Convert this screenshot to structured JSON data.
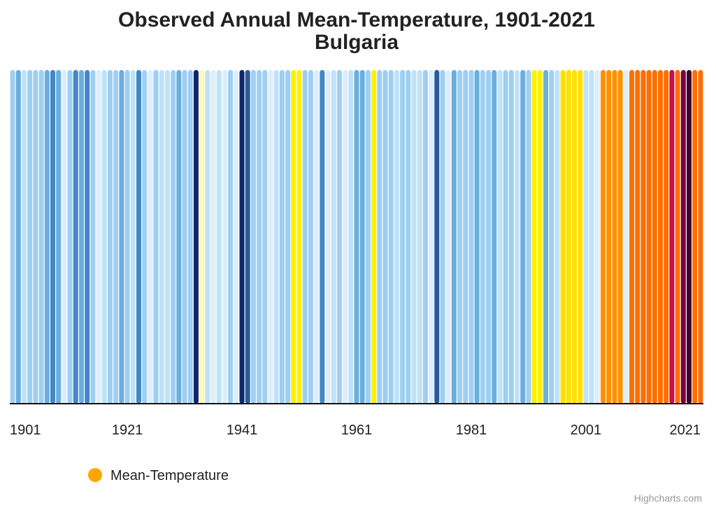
{
  "chart_data": {
    "type": "bar",
    "title": "Observed Annual Mean-Temperature, 1901-2021",
    "subtitle": "Bulgaria",
    "x_start": 1901,
    "x_end": 2021,
    "x_ticks": [
      "1901",
      "1921",
      "1941",
      "1961",
      "1981",
      "2001",
      "2021"
    ],
    "series": [
      {
        "name": "Mean-Temperature",
        "legend_color": "#FFA500",
        "color_codes": [
          2,
          3,
          1,
          2,
          2,
          2,
          3,
          4,
          3,
          0,
          2,
          4,
          3,
          4,
          2,
          0,
          1,
          2,
          2,
          3,
          2,
          1,
          4,
          2,
          0,
          2,
          1,
          1,
          2,
          3,
          2,
          2,
          7,
          8,
          1,
          0,
          1,
          0,
          2,
          0,
          7,
          6,
          2,
          2,
          2,
          0,
          1,
          2,
          2,
          9,
          9,
          2,
          2,
          0,
          4,
          0,
          1,
          2,
          0,
          1,
          3,
          3,
          2,
          9,
          2,
          2,
          2,
          1,
          2,
          2,
          1,
          1,
          2,
          0,
          6,
          2,
          0,
          3,
          2,
          2,
          2,
          3,
          2,
          2,
          3,
          1,
          2,
          2,
          1,
          3,
          2,
          9,
          9,
          3,
          2,
          1,
          10,
          10,
          10,
          10,
          1,
          1,
          0,
          11,
          11,
          11,
          11,
          0,
          12,
          12,
          12,
          12,
          12,
          12,
          12,
          13,
          12,
          14,
          15,
          16,
          12
        ],
        "palette": {
          "0": "#DDEEFB",
          "1": "#BFE2F7",
          "2": "#9FCFF0",
          "3": "#6AAEDE",
          "4": "#4487C6",
          "6": "#2A5C9A",
          "7": "#10286A",
          "8": "#FFFBB0",
          "9": "#FFF000",
          "10": "#FFE000",
          "11": "#FF9000",
          "12": "#FF6E00",
          "13": "#C01050",
          "14": "#7A0040",
          "15": "#3A0030",
          "16": "#FF6E00"
        },
        "color_legend": "codes index palette; 0 = lightest blue, rising to 16"
      }
    ],
    "grid": false,
    "legend_position": "bottom-left"
  },
  "credits": "Highcharts.com"
}
